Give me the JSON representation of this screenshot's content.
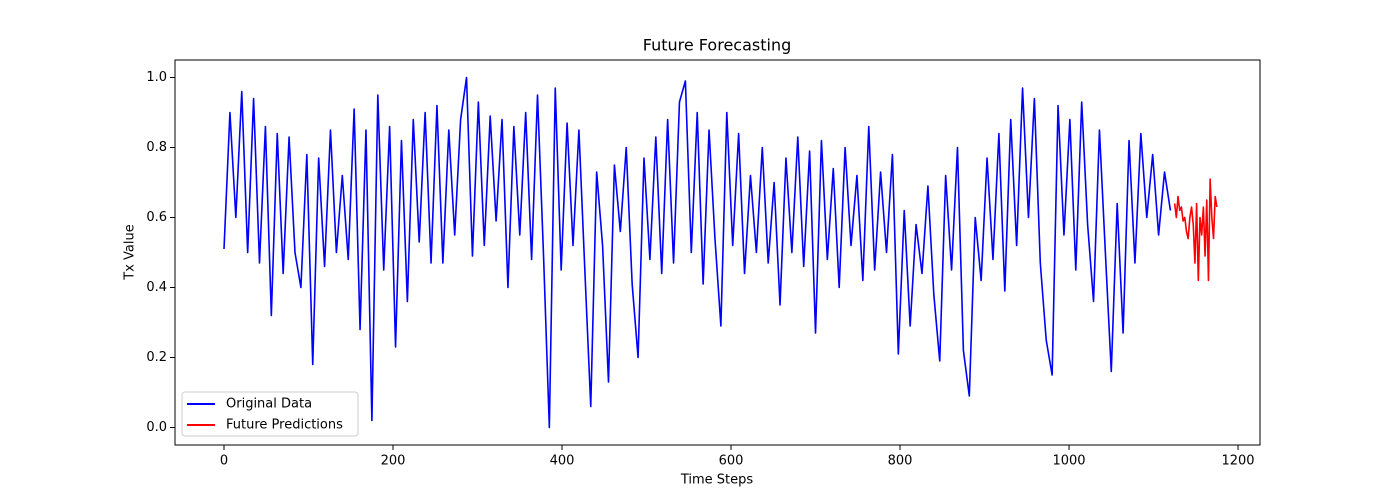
{
  "chart_data": {
    "type": "line",
    "title": "Future Forecasting",
    "x_label": "Time Steps",
    "y_label": "Tx Value",
    "xlim": [
      -58,
      1226
    ],
    "ylim": [
      -0.05,
      1.05
    ],
    "xticks": [
      0,
      200,
      400,
      600,
      800,
      1000,
      1200
    ],
    "yticks": [
      {
        "value": 0,
        "label": "0.0"
      },
      0.2,
      0.4,
      0.6,
      0.8,
      {
        "value": 1,
        "label": "1.0"
      }
    ],
    "legend": "lower left",
    "series": [
      {
        "name": "Original Data",
        "color": "#0000ff",
        "x": [
          0,
          7,
          14,
          21,
          28,
          35,
          42,
          49,
          56,
          63,
          70,
          77,
          84,
          91,
          98,
          105,
          112,
          119,
          126,
          133,
          140,
          147,
          154,
          161,
          168,
          175,
          182,
          189,
          196,
          203,
          210,
          217,
          224,
          231,
          238,
          245,
          252,
          259,
          266,
          273,
          280,
          287,
          294,
          301,
          308,
          315,
          322,
          329,
          336,
          343,
          350,
          357,
          364,
          371,
          378,
          385,
          392,
          399,
          406,
          413,
          420,
          427,
          434,
          441,
          448,
          455,
          462,
          469,
          476,
          483,
          490,
          497,
          504,
          511,
          518,
          525,
          532,
          539,
          546,
          553,
          560,
          567,
          574,
          581,
          588,
          595,
          602,
          609,
          616,
          623,
          630,
          637,
          644,
          651,
          658,
          665,
          672,
          679,
          686,
          693,
          700,
          707,
          714,
          721,
          728,
          735,
          742,
          749,
          756,
          763,
          770,
          777,
          784,
          791,
          798,
          805,
          812,
          819,
          826,
          833,
          840,
          847,
          854,
          861,
          868,
          875,
          882,
          889,
          896,
          903,
          910,
          917,
          924,
          931,
          938,
          945,
          952,
          959,
          966,
          973,
          980,
          987,
          994,
          1001,
          1008,
          1015,
          1022,
          1029,
          1036,
          1043,
          1050,
          1057,
          1064,
          1071,
          1078,
          1085,
          1092,
          1099,
          1106,
          1113,
          1120
        ],
        "values": [
          0.51,
          0.9,
          0.6,
          0.96,
          0.5,
          0.94,
          0.47,
          0.86,
          0.32,
          0.84,
          0.44,
          0.83,
          0.5,
          0.4,
          0.78,
          0.18,
          0.77,
          0.46,
          0.85,
          0.5,
          0.72,
          0.48,
          0.91,
          0.28,
          0.85,
          0.02,
          0.95,
          0.45,
          0.86,
          0.23,
          0.82,
          0.36,
          0.88,
          0.53,
          0.9,
          0.47,
          0.92,
          0.47,
          0.85,
          0.55,
          0.88,
          1.0,
          0.49,
          0.93,
          0.52,
          0.89,
          0.59,
          0.88,
          0.4,
          0.86,
          0.55,
          0.9,
          0.48,
          0.95,
          0.5,
          0.0,
          0.97,
          0.45,
          0.87,
          0.52,
          0.85,
          0.45,
          0.06,
          0.73,
          0.52,
          0.13,
          0.75,
          0.56,
          0.8,
          0.41,
          0.2,
          0.77,
          0.48,
          0.83,
          0.44,
          0.88,
          0.47,
          0.93,
          0.99,
          0.5,
          0.9,
          0.41,
          0.85,
          0.54,
          0.29,
          0.9,
          0.52,
          0.84,
          0.44,
          0.72,
          0.5,
          0.8,
          0.47,
          0.7,
          0.35,
          0.77,
          0.5,
          0.83,
          0.46,
          0.79,
          0.27,
          0.82,
          0.48,
          0.74,
          0.4,
          0.8,
          0.52,
          0.72,
          0.42,
          0.86,
          0.45,
          0.73,
          0.5,
          0.78,
          0.21,
          0.62,
          0.29,
          0.58,
          0.44,
          0.69,
          0.38,
          0.19,
          0.72,
          0.45,
          0.8,
          0.22,
          0.09,
          0.6,
          0.42,
          0.77,
          0.48,
          0.84,
          0.39,
          0.88,
          0.52,
          0.97,
          0.6,
          0.94,
          0.47,
          0.25,
          0.15,
          0.92,
          0.55,
          0.88,
          0.45,
          0.93,
          0.58,
          0.36,
          0.85,
          0.5,
          0.16,
          0.64,
          0.27,
          0.82,
          0.47,
          0.84,
          0.6,
          0.78,
          0.55,
          0.73,
          0.62
        ]
      },
      {
        "name": "Future Predictions",
        "color": "#ff0000",
        "x": [
          1125,
          1127,
          1129,
          1131,
          1133,
          1135,
          1137,
          1139,
          1141,
          1143,
          1145,
          1147,
          1149,
          1151,
          1153,
          1155,
          1157,
          1159,
          1161,
          1163,
          1165,
          1167,
          1169,
          1171,
          1173,
          1175
        ],
        "values": [
          0.64,
          0.6,
          0.66,
          0.62,
          0.63,
          0.59,
          0.6,
          0.56,
          0.54,
          0.6,
          0.63,
          0.58,
          0.47,
          0.64,
          0.42,
          0.6,
          0.55,
          0.63,
          0.49,
          0.65,
          0.42,
          0.71,
          0.6,
          0.54,
          0.66,
          0.63
        ]
      }
    ]
  }
}
